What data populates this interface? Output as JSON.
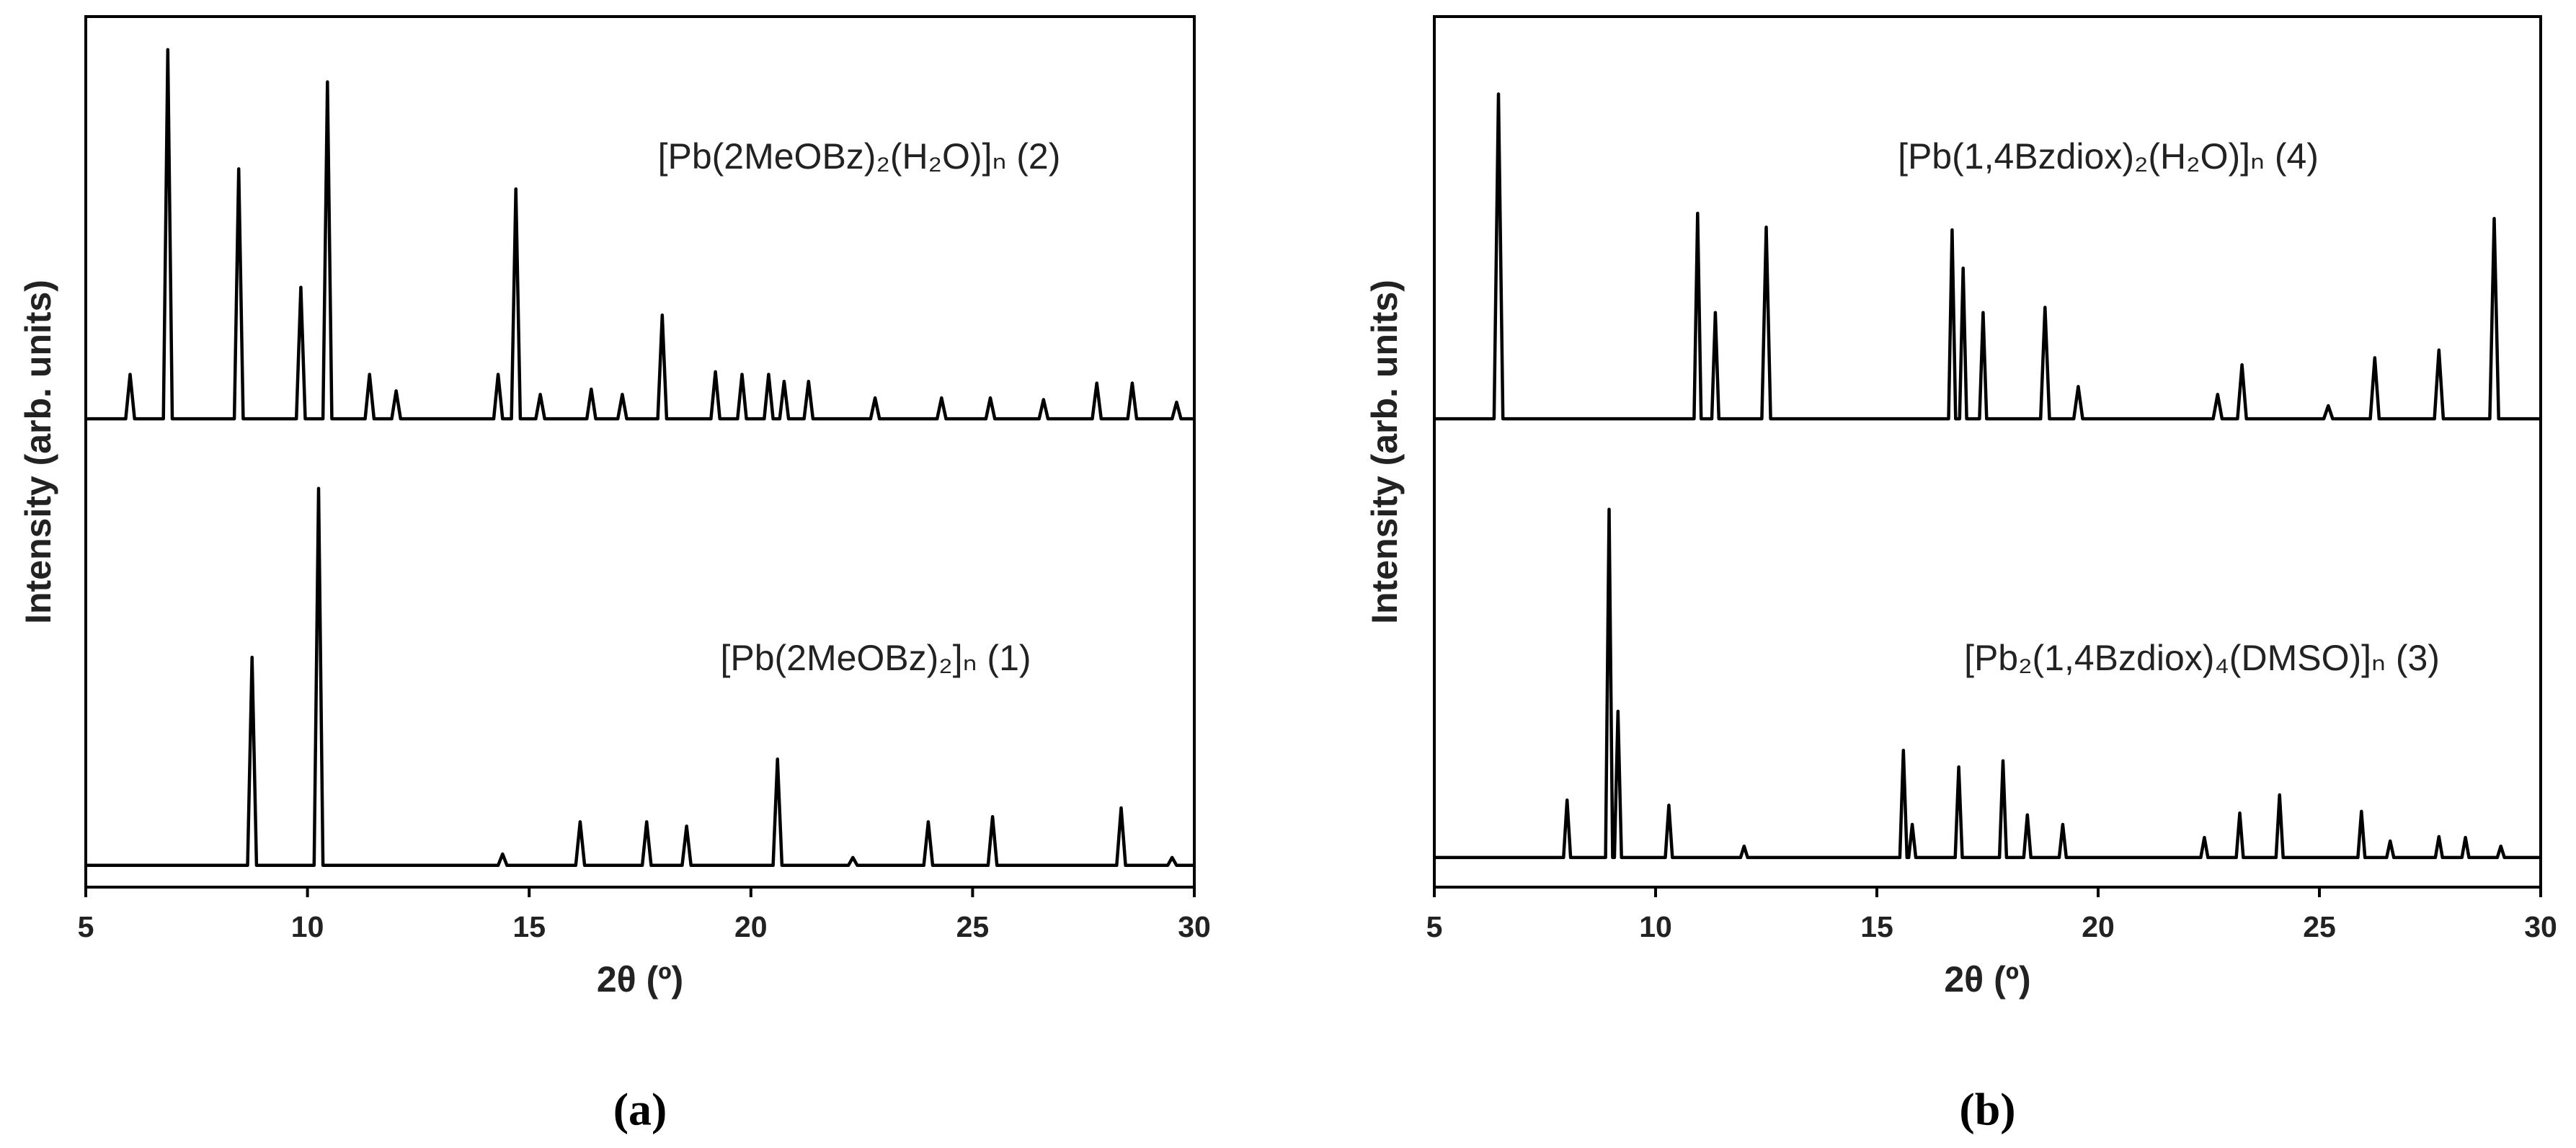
{
  "chart_data": [
    {
      "type": "line",
      "panel_label": "(a)",
      "xlabel": "2θ (º)",
      "ylabel": "Intensity (arb. units)",
      "xlim": [
        5,
        30
      ],
      "xticks": [
        5,
        10,
        15,
        20,
        25,
        30
      ],
      "ylim": [
        0,
        100
      ],
      "series": [
        {
          "name": "[Pb(2MeOBz)₂(H₂O)]ₙ (2)",
          "color": "#000000",
          "x": [
            5,
            5.9,
            6,
            6.1,
            6.75,
            6.85,
            6.95,
            8.35,
            8.45,
            8.55,
            9.75,
            9.85,
            9.95,
            10.35,
            10.45,
            10.55,
            11.3,
            11.4,
            11.5,
            11.9,
            12,
            12.1,
            14.2,
            14.3,
            14.4,
            14.6,
            14.7,
            14.8,
            15.15,
            15.25,
            15.35,
            16.3,
            16.4,
            16.5,
            17,
            17.1,
            17.2,
            17.9,
            18,
            18.1,
            19.1,
            19.2,
            19.3,
            19.7,
            19.8,
            19.9,
            20.3,
            20.4,
            20.5,
            20.65,
            20.75,
            20.85,
            21.2,
            21.3,
            21.4,
            22.7,
            22.8,
            22.9,
            24.2,
            24.3,
            24.4,
            25.3,
            25.4,
            25.5,
            26.5,
            26.6,
            26.7,
            27.7,
            27.8,
            27.9,
            28.5,
            28.6,
            28.7,
            29.5,
            29.6,
            29.7,
            30
          ],
          "values": [
            53.8,
            53.8,
            58.9,
            53.8,
            53.8,
            96.2,
            53.8,
            53.8,
            82.5,
            53.8,
            53.8,
            68.9,
            53.8,
            53.8,
            92.5,
            53.8,
            53.8,
            58.9,
            53.8,
            53.8,
            57.0,
            53.8,
            53.8,
            58.9,
            53.8,
            53.8,
            80.2,
            53.8,
            53.8,
            56.6,
            53.8,
            53.8,
            57.2,
            53.8,
            53.8,
            56.6,
            53.8,
            53.8,
            65.7,
            53.8,
            53.8,
            59.2,
            53.8,
            53.8,
            58.9,
            53.8,
            53.8,
            58.9,
            53.8,
            53.8,
            58.1,
            53.8,
            53.8,
            58.1,
            53.8,
            53.8,
            56.2,
            53.8,
            53.8,
            56.2,
            53.8,
            53.8,
            56.2,
            53.8,
            53.8,
            56.0,
            53.8,
            53.8,
            57.9,
            53.8,
            53.8,
            57.9,
            53.8,
            53.8,
            55.7,
            53.8,
            53.8
          ]
        },
        {
          "name": "[Pb(2MeOBz)₂]ₙ (1)",
          "color": "#000000",
          "x": [
            5,
            8.65,
            8.75,
            8.85,
            10.15,
            10.25,
            10.35,
            14.3,
            14.4,
            14.5,
            16.05,
            16.15,
            16.25,
            17.55,
            17.65,
            17.75,
            18.45,
            18.55,
            18.65,
            20.5,
            20.6,
            20.7,
            22.2,
            22.3,
            22.4,
            23.9,
            24,
            24.1,
            25.35,
            25.45,
            25.55,
            28.25,
            28.35,
            28.45,
            29.4,
            29.5,
            29.6,
            30
          ],
          "values": [
            2.5,
            2.5,
            26.4,
            2.5,
            2.5,
            45.8,
            2.5,
            2.5,
            3.8,
            2.5,
            2.5,
            7.5,
            2.5,
            2.5,
            7.5,
            2.5,
            2.5,
            7.0,
            2.5,
            2.5,
            14.7,
            2.5,
            2.5,
            3.4,
            2.5,
            2.5,
            7.5,
            2.5,
            2.5,
            8.1,
            2.5,
            2.5,
            9.1,
            2.5,
            2.5,
            3.4,
            2.5,
            2.5
          ]
        }
      ]
    },
    {
      "type": "line",
      "panel_label": "(b)",
      "xlabel": "2θ (º)",
      "ylabel": "Intensity (arb. units)",
      "xlim": [
        5,
        30
      ],
      "xticks": [
        5,
        10,
        15,
        20,
        25,
        30
      ],
      "ylim": [
        0,
        100
      ],
      "series": [
        {
          "name": "[Pb(1,4Bzdiox)₂(H₂O)]ₙ (4)",
          "color": "#000000",
          "x": [
            5,
            6.35,
            6.45,
            6.55,
            10.87,
            10.95,
            11.03,
            11.27,
            11.35,
            11.43,
            12.4,
            12.5,
            12.6,
            16.62,
            16.7,
            16.78,
            16.87,
            16.95,
            17.03,
            17.32,
            17.4,
            17.48,
            18.7,
            18.8,
            18.9,
            19.45,
            19.55,
            19.65,
            22.6,
            22.7,
            22.8,
            23.15,
            23.25,
            23.35,
            25.1,
            25.2,
            25.3,
            26.15,
            26.25,
            26.35,
            27.6,
            27.7,
            27.8,
            28.85,
            28.95,
            29.05,
            30
          ],
          "values": [
            53.8,
            53.8,
            91.1,
            53.8,
            53.8,
            77.4,
            53.8,
            53.8,
            66.0,
            53.8,
            53.8,
            75.8,
            53.8,
            53.8,
            75.5,
            53.8,
            53.8,
            71.1,
            53.8,
            53.8,
            66.0,
            53.8,
            53.8,
            66.6,
            53.8,
            53.8,
            57.5,
            53.8,
            53.8,
            56.6,
            53.8,
            53.8,
            60.0,
            53.8,
            53.8,
            55.3,
            53.8,
            53.8,
            60.8,
            53.8,
            53.8,
            61.7,
            53.8,
            53.8,
            76.8,
            53.8,
            53.8
          ]
        },
        {
          "name": "[Pb₂(1,4Bzdiox)₄(DMSO)]ₙ (3)",
          "color": "#000000",
          "x": [
            5,
            7.92,
            8,
            8.08,
            8.87,
            8.95,
            9.03,
            9.07,
            9.15,
            9.23,
            10.22,
            10.3,
            10.38,
            11.92,
            12,
            12.08,
            15.52,
            15.6,
            15.68,
            15.72,
            15.8,
            15.88,
            16.77,
            16.85,
            16.93,
            17.77,
            17.85,
            17.93,
            18.32,
            18.4,
            18.48,
            19.12,
            19.2,
            19.28,
            22.32,
            22.4,
            22.48,
            23.12,
            23.2,
            23.28,
            24.02,
            24.1,
            24.18,
            25.87,
            25.95,
            26.03,
            26.52,
            26.6,
            26.68,
            27.62,
            27.7,
            27.78,
            28.22,
            28.3,
            28.38,
            29.02,
            29.1,
            29.18,
            30
          ],
          "values": [
            3.4,
            3.4,
            10.0,
            3.4,
            3.4,
            43.4,
            3.4,
            3.4,
            20.2,
            3.4,
            3.4,
            9.4,
            3.4,
            3.4,
            4.7,
            3.4,
            3.4,
            15.7,
            3.4,
            3.4,
            7.2,
            3.4,
            3.4,
            13.8,
            3.4,
            3.4,
            14.5,
            3.4,
            3.4,
            8.3,
            3.4,
            3.4,
            7.2,
            3.4,
            3.4,
            5.7,
            3.4,
            3.4,
            8.5,
            3.4,
            3.4,
            10.6,
            3.4,
            3.4,
            8.7,
            3.4,
            3.4,
            5.3,
            3.4,
            3.4,
            5.8,
            3.4,
            3.4,
            5.7,
            3.4,
            3.4,
            4.7,
            3.4,
            3.4
          ]
        }
      ]
    }
  ]
}
